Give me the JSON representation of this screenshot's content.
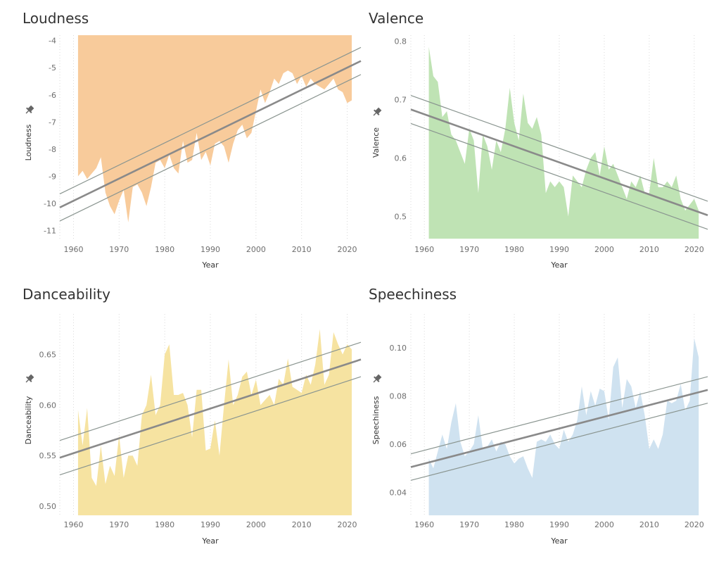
{
  "chart_data": [
    {
      "type": "area",
      "title": "Loudness",
      "xlabel": "Year",
      "ylabel": "Loudness",
      "color": "#f8cb9b",
      "baseline": "top",
      "xlim": [
        1957,
        2023
      ],
      "ylim": [
        -11.3,
        -3.8
      ],
      "xticks": [
        1960,
        1970,
        1980,
        1990,
        2000,
        2010,
        2020
      ],
      "yticks": [
        -11,
        -10,
        -9,
        -8,
        -7,
        -6,
        -5,
        -4
      ],
      "ytick_labels": [
        "-11",
        "-10",
        "-9",
        "-8",
        "-7",
        "-6",
        "-5",
        "-4"
      ],
      "x": [
        1961,
        1962,
        1963,
        1964,
        1965,
        1966,
        1967,
        1968,
        1969,
        1970,
        1971,
        1972,
        1973,
        1974,
        1975,
        1976,
        1977,
        1978,
        1979,
        1980,
        1981,
        1982,
        1983,
        1984,
        1985,
        1986,
        1987,
        1988,
        1989,
        1990,
        1991,
        1992,
        1993,
        1994,
        1995,
        1996,
        1997,
        1998,
        1999,
        2000,
        2001,
        2002,
        2003,
        2004,
        2005,
        2006,
        2007,
        2008,
        2009,
        2010,
        2011,
        2012,
        2013,
        2014,
        2015,
        2016,
        2017,
        2018,
        2019,
        2020,
        2021
      ],
      "y": [
        -9.0,
        -8.8,
        -9.1,
        -8.9,
        -8.7,
        -8.3,
        -9.6,
        -10.1,
        -10.4,
        -9.9,
        -9.5,
        -10.7,
        -9.4,
        -9.3,
        -9.6,
        -10.1,
        -9.4,
        -8.5,
        -8.4,
        -8.7,
        -8.2,
        -8.7,
        -8.9,
        -7.7,
        -8.5,
        -8.4,
        -7.4,
        -8.4,
        -8.1,
        -8.6,
        -7.8,
        -7.7,
        -7.9,
        -8.5,
        -7.8,
        -7.3,
        -7.1,
        -7.6,
        -7.4,
        -6.6,
        -5.8,
        -6.3,
        -5.9,
        -5.4,
        -5.6,
        -5.2,
        -5.1,
        -5.2,
        -5.6,
        -5.3,
        -5.7,
        -5.4,
        -5.6,
        -5.7,
        -5.8,
        -5.6,
        -5.4,
        -5.8,
        -5.9,
        -6.3,
        -6.2
      ],
      "trend": {
        "start": [
          1957,
          -10.15
        ],
        "end": [
          2023,
          -4.75
        ],
        "band": 0.5
      }
    },
    {
      "type": "area",
      "title": "Valence",
      "xlabel": "Year",
      "ylabel": "Valence",
      "color": "#bfe3b4",
      "baseline": "bottom",
      "xlim": [
        1957,
        2023
      ],
      "ylim": [
        0.462,
        0.81
      ],
      "xticks": [
        1960,
        1970,
        1980,
        1990,
        2000,
        2010,
        2020
      ],
      "yticks": [
        0.5,
        0.6,
        0.7,
        0.8
      ],
      "ytick_labels": [
        "0.5",
        "0.6",
        "0.7",
        "0.8"
      ],
      "x": [
        1961,
        1962,
        1963,
        1964,
        1965,
        1966,
        1967,
        1968,
        1969,
        1970,
        1971,
        1972,
        1973,
        1974,
        1975,
        1976,
        1977,
        1978,
        1979,
        1980,
        1981,
        1982,
        1983,
        1984,
        1985,
        1986,
        1987,
        1988,
        1989,
        1990,
        1991,
        1992,
        1993,
        1994,
        1995,
        1996,
        1997,
        1998,
        1999,
        2000,
        2001,
        2002,
        2003,
        2004,
        2005,
        2006,
        2007,
        2008,
        2009,
        2010,
        2011,
        2012,
        2013,
        2014,
        2015,
        2016,
        2017,
        2018,
        2019,
        2020,
        2021
      ],
      "y": [
        0.79,
        0.74,
        0.73,
        0.67,
        0.68,
        0.64,
        0.63,
        0.61,
        0.59,
        0.65,
        0.63,
        0.54,
        0.64,
        0.62,
        0.58,
        0.63,
        0.61,
        0.65,
        0.72,
        0.66,
        0.63,
        0.71,
        0.66,
        0.65,
        0.67,
        0.64,
        0.54,
        0.56,
        0.55,
        0.56,
        0.55,
        0.5,
        0.57,
        0.56,
        0.55,
        0.58,
        0.6,
        0.61,
        0.57,
        0.62,
        0.58,
        0.59,
        0.57,
        0.55,
        0.53,
        0.56,
        0.55,
        0.57,
        0.54,
        0.54,
        0.6,
        0.55,
        0.55,
        0.56,
        0.55,
        0.57,
        0.53,
        0.51,
        0.52,
        0.53,
        0.51
      ],
      "trend": {
        "start": [
          1957,
          0.683
        ],
        "end": [
          2023,
          0.502
        ],
        "band": 0.024
      }
    },
    {
      "type": "area",
      "title": "Danceability",
      "xlabel": "Year",
      "ylabel": "Danceability",
      "color": "#f6e3a1",
      "baseline": "bottom",
      "xlim": [
        1957,
        2023
      ],
      "ylim": [
        0.491,
        0.69
      ],
      "xticks": [
        1960,
        1970,
        1980,
        1990,
        2000,
        2010,
        2020
      ],
      "yticks": [
        0.5,
        0.55,
        0.6,
        0.65
      ],
      "ytick_labels": [
        "0.50",
        "0.55",
        "0.60",
        "0.65"
      ],
      "x": [
        1961,
        1962,
        1963,
        1964,
        1965,
        1966,
        1967,
        1968,
        1969,
        1970,
        1971,
        1972,
        1973,
        1974,
        1975,
        1976,
        1977,
        1978,
        1979,
        1980,
        1981,
        1982,
        1983,
        1984,
        1985,
        1986,
        1987,
        1988,
        1989,
        1990,
        1991,
        1992,
        1993,
        1994,
        1995,
        1996,
        1997,
        1998,
        1999,
        2000,
        2001,
        2002,
        2003,
        2004,
        2005,
        2006,
        2007,
        2008,
        2009,
        2010,
        2011,
        2012,
        2013,
        2014,
        2015,
        2016,
        2017,
        2018,
        2019,
        2020,
        2021
      ],
      "y": [
        0.595,
        0.56,
        0.597,
        0.528,
        0.52,
        0.56,
        0.522,
        0.54,
        0.53,
        0.57,
        0.528,
        0.55,
        0.55,
        0.54,
        0.59,
        0.6,
        0.63,
        0.59,
        0.6,
        0.65,
        0.66,
        0.61,
        0.61,
        0.612,
        0.6,
        0.568,
        0.615,
        0.615,
        0.555,
        0.557,
        0.585,
        0.55,
        0.6,
        0.645,
        0.6,
        0.61,
        0.628,
        0.633,
        0.61,
        0.625,
        0.6,
        0.605,
        0.61,
        0.6,
        0.626,
        0.62,
        0.646,
        0.618,
        0.615,
        0.612,
        0.63,
        0.62,
        0.64,
        0.675,
        0.62,
        0.63,
        0.672,
        0.66,
        0.65,
        0.66,
        0.655
      ],
      "trend": {
        "start": [
          1957,
          0.548
        ],
        "end": [
          2023,
          0.645
        ],
        "band": 0.017
      }
    },
    {
      "type": "area",
      "title": "Speechiness",
      "xlabel": "Year",
      "ylabel": "Speechiness",
      "color": "#cfe2f0",
      "baseline": "bottom",
      "xlim": [
        1957,
        2023
      ],
      "ylim": [
        0.0305,
        0.114
      ],
      "xticks": [
        1960,
        1970,
        1980,
        1990,
        2000,
        2010,
        2020
      ],
      "yticks": [
        0.04,
        0.06,
        0.08,
        0.1
      ],
      "ytick_labels": [
        "0.04",
        "0.06",
        "0.08",
        "0.10"
      ],
      "x": [
        1961,
        1962,
        1963,
        1964,
        1965,
        1966,
        1967,
        1968,
        1969,
        1970,
        1971,
        1972,
        1973,
        1974,
        1975,
        1976,
        1977,
        1978,
        1979,
        1980,
        1981,
        1982,
        1983,
        1984,
        1985,
        1986,
        1987,
        1988,
        1989,
        1990,
        1991,
        1992,
        1993,
        1994,
        1995,
        1996,
        1997,
        1998,
        1999,
        2000,
        2001,
        2002,
        2003,
        2004,
        2005,
        2006,
        2007,
        2008,
        2009,
        2010,
        2011,
        2012,
        2013,
        2014,
        2015,
        2016,
        2017,
        2018,
        2019,
        2020,
        2021
      ],
      "y": [
        0.054,
        0.05,
        0.057,
        0.064,
        0.058,
        0.069,
        0.077,
        0.061,
        0.055,
        0.057,
        0.06,
        0.072,
        0.058,
        0.059,
        0.062,
        0.057,
        0.061,
        0.06,
        0.055,
        0.052,
        0.054,
        0.055,
        0.05,
        0.046,
        0.061,
        0.062,
        0.061,
        0.064,
        0.06,
        0.058,
        0.066,
        0.061,
        0.064,
        0.07,
        0.084,
        0.072,
        0.082,
        0.076,
        0.083,
        0.082,
        0.07,
        0.092,
        0.096,
        0.075,
        0.087,
        0.084,
        0.075,
        0.082,
        0.072,
        0.058,
        0.062,
        0.058,
        0.064,
        0.078,
        0.077,
        0.078,
        0.085,
        0.074,
        0.078,
        0.104,
        0.096
      ],
      "trend": {
        "start": [
          1957,
          0.0505
        ],
        "end": [
          2023,
          0.0825
        ],
        "band": 0.0055
      }
    }
  ]
}
